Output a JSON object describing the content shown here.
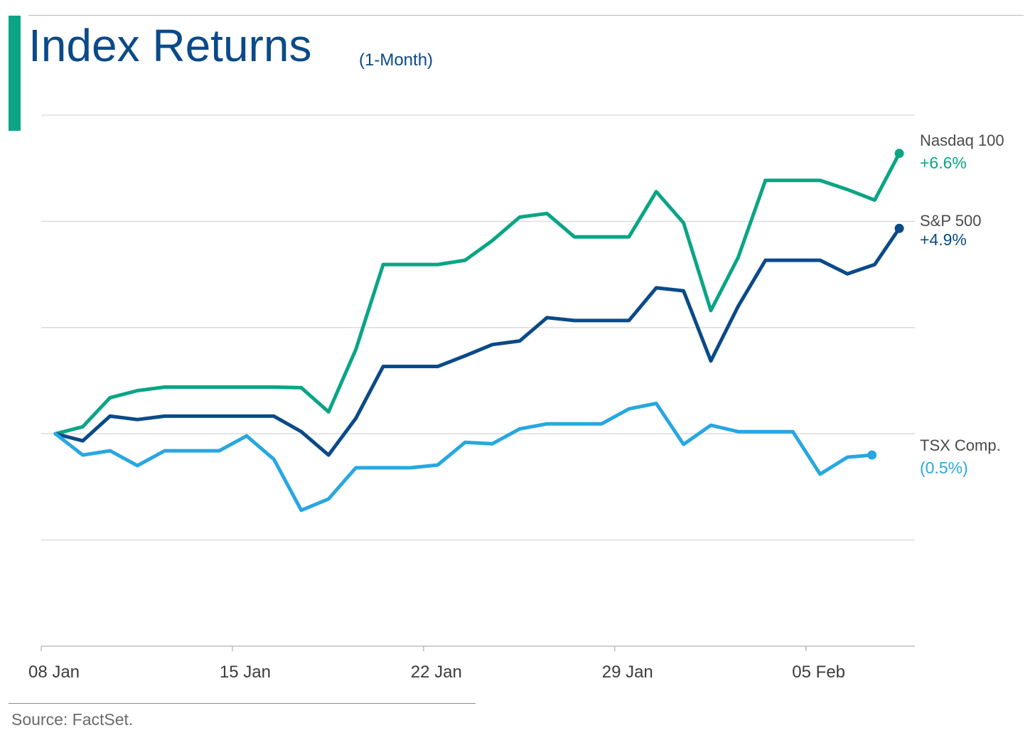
{
  "title": "Index Returns",
  "subtitle": "(1-Month)",
  "source": "Source: FactSet.",
  "colors": {
    "accent": "#0aa585",
    "title": "#0b4a88",
    "grid": "#d9d9d9",
    "axis": "#bdbdbd",
    "tick_text": "#3c3c3c",
    "label_text": "#4a4a4a"
  },
  "chart_data": {
    "type": "line",
    "x_tick_labels": [
      "08 Jan",
      "15 Jan",
      "22 Jan",
      "29 Jan",
      "05 Feb"
    ],
    "x_tick_positions": [
      0,
      7,
      14,
      21,
      28
    ],
    "x_axis_note": "trading-day index, 08 Jan = 0 (includes non-trading days)",
    "y_axis_labels_shown": false,
    "grid": true,
    "ylim": [
      -10,
      15
    ],
    "series": [
      {
        "name": "Nasdaq 100",
        "end_label": "+6.6%",
        "color": "#0aa585",
        "points": [
          [
            0,
            0
          ],
          [
            1,
            0.33
          ],
          [
            2,
            1.7
          ],
          [
            3,
            2.03
          ],
          [
            4,
            2.2
          ],
          [
            6,
            2.2
          ],
          [
            8,
            2.2
          ],
          [
            9,
            2.17
          ],
          [
            10,
            1.03
          ],
          [
            11,
            3.97
          ],
          [
            12,
            7.97
          ],
          [
            13,
            7.97
          ],
          [
            14,
            7.97
          ],
          [
            15,
            8.17
          ],
          [
            16,
            9.1
          ],
          [
            17,
            10.2
          ],
          [
            18,
            10.37
          ],
          [
            19,
            9.27
          ],
          [
            20,
            9.27
          ],
          [
            21,
            9.27
          ],
          [
            22,
            11.4
          ],
          [
            23,
            9.93
          ],
          [
            24,
            5.8
          ],
          [
            25,
            8.3
          ],
          [
            26,
            11.93
          ],
          [
            27,
            11.93
          ],
          [
            28,
            11.93
          ],
          [
            29,
            11.5
          ],
          [
            30,
            11
          ],
          [
            30.9,
            13.2
          ]
        ]
      },
      {
        "name": "S&P 500",
        "end_label": "+4.9%",
        "color": "#0b4a88",
        "points": [
          [
            0,
            0
          ],
          [
            1,
            -0.33
          ],
          [
            2,
            0.83
          ],
          [
            3,
            0.67
          ],
          [
            4,
            0.83
          ],
          [
            6,
            0.83
          ],
          [
            8,
            0.83
          ],
          [
            9,
            0.1
          ],
          [
            10,
            -1
          ],
          [
            11,
            0.73
          ],
          [
            12,
            3.17
          ],
          [
            13,
            3.17
          ],
          [
            14,
            3.17
          ],
          [
            15,
            3.67
          ],
          [
            16,
            4.2
          ],
          [
            17,
            4.37
          ],
          [
            18,
            5.47
          ],
          [
            19,
            5.33
          ],
          [
            20,
            5.33
          ],
          [
            21,
            5.33
          ],
          [
            22,
            6.87
          ],
          [
            23,
            6.73
          ],
          [
            24,
            3.43
          ],
          [
            25,
            6
          ],
          [
            26,
            8.17
          ],
          [
            27,
            8.17
          ],
          [
            28,
            8.17
          ],
          [
            29,
            7.53
          ],
          [
            30,
            7.97
          ],
          [
            30.9,
            9.67
          ]
        ]
      },
      {
        "name": "TSX Comp.",
        "end_label": "(0.5%)",
        "color": "#28a7e0",
        "points": [
          [
            0,
            0
          ],
          [
            1,
            -1
          ],
          [
            2,
            -0.8
          ],
          [
            3,
            -1.5
          ],
          [
            4,
            -0.8
          ],
          [
            6,
            -0.8
          ],
          [
            7,
            -0.1
          ],
          [
            8,
            -1.2
          ],
          [
            9,
            -3.6
          ],
          [
            10,
            -3.07
          ],
          [
            11,
            -1.6
          ],
          [
            12,
            -1.6
          ],
          [
            13,
            -1.6
          ],
          [
            14,
            -1.47
          ],
          [
            15,
            -0.4
          ],
          [
            16,
            -0.47
          ],
          [
            17,
            0.23
          ],
          [
            18,
            0.47
          ],
          [
            19,
            0.47
          ],
          [
            20,
            0.47
          ],
          [
            21,
            1.17
          ],
          [
            22,
            1.43
          ],
          [
            23,
            -0.5
          ],
          [
            24,
            0.4
          ],
          [
            25,
            0.1
          ],
          [
            26,
            0.1
          ],
          [
            27,
            0.1
          ],
          [
            28,
            -1.9
          ],
          [
            29,
            -1.1
          ],
          [
            29.9,
            -1
          ]
        ]
      }
    ]
  }
}
